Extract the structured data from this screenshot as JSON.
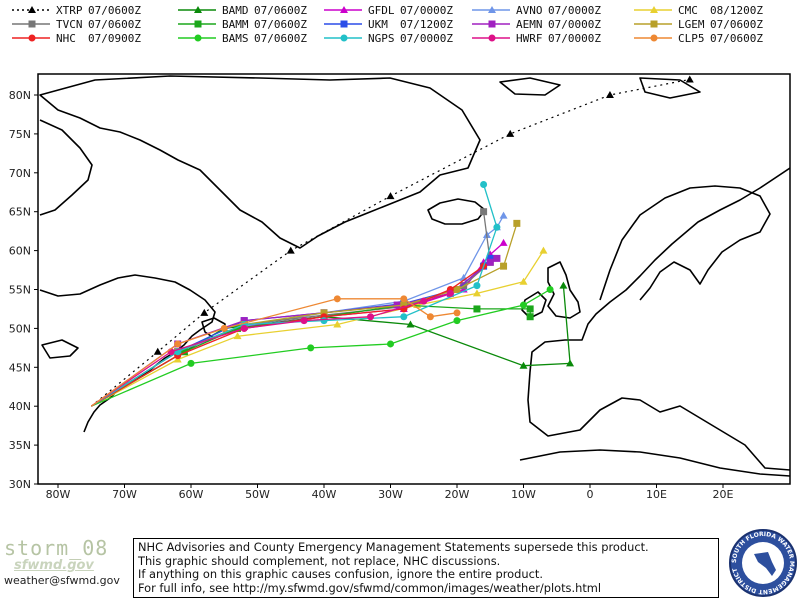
{
  "map": {
    "lat_ticks": [
      "80N",
      "75N",
      "70N",
      "65N",
      "60N",
      "55N",
      "50N",
      "45N",
      "40N",
      "35N",
      "30N"
    ],
    "lon_ticks": [
      "80W",
      "70W",
      "60W",
      "50W",
      "40W",
      "30W",
      "20W",
      "10W",
      "0",
      "10E",
      "20E"
    ]
  },
  "legend": [
    {
      "model": "XTRP",
      "time": "07/0600Z",
      "color": "#000000",
      "marker": "triangle",
      "dashed": true
    },
    {
      "model": "BAMD",
      "time": "07/0600Z",
      "color": "#0a8a0a",
      "marker": "triangle"
    },
    {
      "model": "GFDL",
      "time": "07/0000Z",
      "color": "#cc00cc",
      "marker": "triangle"
    },
    {
      "model": "AVNO",
      "time": "07/0000Z",
      "color": "#6f95e8",
      "marker": "triangle"
    },
    {
      "model": "CMC",
      "time": "08/1200Z",
      "color": "#e8d030",
      "marker": "triangle"
    },
    {
      "model": "TVCN",
      "time": "07/0600Z",
      "color": "#777777",
      "marker": "square"
    },
    {
      "model": "BAMM",
      "time": "07/0600Z",
      "color": "#1ba71b",
      "marker": "square"
    },
    {
      "model": "UKM",
      "time": "07/1200Z",
      "color": "#2b4de8",
      "marker": "square"
    },
    {
      "model": "AEMN",
      "time": "07/0000Z",
      "color": "#a020c0",
      "marker": "square"
    },
    {
      "model": "LGEM",
      "time": "07/0600Z",
      "color": "#b8a02a",
      "marker": "square"
    },
    {
      "model": "NHC",
      "time": "07/0900Z",
      "color": "#ee2222",
      "marker": "circle"
    },
    {
      "model": "BAMS",
      "time": "07/0600Z",
      "color": "#22cc22",
      "marker": "circle"
    },
    {
      "model": "NGPS",
      "time": "07/0000Z",
      "color": "#22c0c8",
      "marker": "circle"
    },
    {
      "model": "HWRF",
      "time": "07/0000Z",
      "color": "#dd1188",
      "marker": "circle"
    },
    {
      "model": "CLP5",
      "time": "07/0600Z",
      "color": "#ee8833",
      "marker": "circle"
    }
  ],
  "tracks": [
    {
      "model": "XTRP",
      "color": "#000000",
      "dashed": true,
      "marker": "triangle",
      "points": [
        [
          -75,
          40
        ],
        [
          -65,
          47
        ],
        [
          -58,
          52
        ],
        [
          -45,
          60
        ],
        [
          -30,
          67
        ],
        [
          -12,
          75
        ],
        [
          3,
          80
        ],
        [
          15,
          82
        ]
      ]
    },
    {
      "model": "BAMD",
      "color": "#0a8a0a",
      "marker": "triangle",
      "points": [
        [
          -75,
          40
        ],
        [
          -61,
          47
        ],
        [
          -55,
          50
        ],
        [
          -40,
          51.5
        ],
        [
          -27,
          50.5
        ],
        [
          -10,
          45.2
        ],
        [
          -3,
          45.5
        ],
        [
          -4,
          55.5
        ]
      ]
    },
    {
      "model": "GFDL",
      "color": "#cc00cc",
      "marker": "triangle",
      "points": [
        [
          -75,
          40
        ],
        [
          -62,
          47
        ],
        [
          -52,
          50.2
        ],
        [
          -40,
          51.5
        ],
        [
          -28,
          52.5
        ],
        [
          -19,
          55
        ],
        [
          -16,
          58.5
        ],
        [
          -15,
          59.5
        ],
        [
          -13,
          61
        ]
      ]
    },
    {
      "model": "AVNO",
      "color": "#6f95e8",
      "marker": "triangle",
      "points": [
        [
          -75,
          40
        ],
        [
          -62,
          47
        ],
        [
          -52,
          50.3
        ],
        [
          -40,
          52
        ],
        [
          -28,
          53.5
        ],
        [
          -19,
          56.5
        ],
        [
          -15.5,
          62
        ],
        [
          -14,
          63
        ],
        [
          -13,
          64.5
        ]
      ]
    },
    {
      "model": "CMC",
      "color": "#e8d030",
      "marker": "triangle",
      "points": [
        [
          -75,
          40
        ],
        [
          -62,
          46
        ],
        [
          -53,
          49
        ],
        [
          -38,
          50.5
        ],
        [
          -26,
          53
        ],
        [
          -17,
          54.5
        ],
        [
          -10,
          56
        ],
        [
          -7,
          60
        ]
      ]
    },
    {
      "model": "TVCN",
      "color": "#777777",
      "marker": "square",
      "points": [
        [
          -75,
          40
        ],
        [
          -62,
          47
        ],
        [
          -52,
          50.5
        ],
        [
          -40,
          51.7
        ],
        [
          -28,
          52.8
        ],
        [
          -19,
          55.5
        ],
        [
          -15,
          58.5
        ],
        [
          -16,
          65
        ]
      ]
    },
    {
      "model": "BAMM",
      "color": "#1ba71b",
      "marker": "square",
      "points": [
        [
          -75,
          40
        ],
        [
          -61,
          47
        ],
        [
          -53,
          50
        ],
        [
          -40,
          51.5
        ],
        [
          -28,
          53
        ],
        [
          -17,
          52.5
        ],
        [
          -9,
          52.5
        ],
        [
          -9,
          51.5
        ]
      ]
    },
    {
      "model": "UKM",
      "color": "#2b4de8",
      "marker": "square",
      "points": [
        [
          -75,
          40
        ],
        [
          -62,
          47
        ],
        [
          -52,
          51
        ],
        [
          -40,
          52
        ],
        [
          -28,
          53.2
        ],
        [
          -20,
          55
        ],
        [
          -16,
          58
        ],
        [
          -15,
          59
        ]
      ]
    },
    {
      "model": "AEMN",
      "color": "#a020c0",
      "marker": "square",
      "points": [
        [
          -75,
          40
        ],
        [
          -62,
          48
        ],
        [
          -52,
          51
        ],
        [
          -40,
          52
        ],
        [
          -29,
          53
        ],
        [
          -21,
          54.5
        ],
        [
          -15,
          58.5
        ],
        [
          -14,
          59
        ]
      ]
    },
    {
      "model": "LGEM",
      "color": "#b8a02a",
      "marker": "square",
      "points": [
        [
          -75,
          40
        ],
        [
          -62,
          47
        ],
        [
          -52,
          50.5
        ],
        [
          -40,
          52
        ],
        [
          -28,
          53
        ],
        [
          -20,
          55
        ],
        [
          -13,
          58
        ],
        [
          -11,
          63.5
        ]
      ]
    },
    {
      "model": "NHC",
      "color": "#ee2222",
      "marker": "circle",
      "points": [
        [
          -75,
          40
        ],
        [
          -62,
          46.5
        ],
        [
          -52,
          50
        ],
        [
          -40,
          51.5
        ],
        [
          -28,
          52.5
        ],
        [
          -21,
          55
        ],
        [
          -16,
          58
        ]
      ]
    },
    {
      "model": "BAMS",
      "color": "#22cc22",
      "marker": "circle",
      "points": [
        [
          -75,
          40
        ],
        [
          -60,
          45.5
        ],
        [
          -42,
          47.5
        ],
        [
          -30,
          48
        ],
        [
          -20,
          51
        ],
        [
          -10,
          53
        ],
        [
          -6,
          55
        ]
      ]
    },
    {
      "model": "NGPS",
      "color": "#22c0c8",
      "marker": "circle",
      "points": [
        [
          -75,
          40
        ],
        [
          -62,
          47
        ],
        [
          -52,
          50.5
        ],
        [
          -40,
          51
        ],
        [
          -28,
          51.5
        ],
        [
          -17,
          55.5
        ],
        [
          -14,
          63
        ],
        [
          -16,
          68.5
        ]
      ]
    },
    {
      "model": "HWRF",
      "color": "#dd1188",
      "marker": "circle",
      "points": [
        [
          -75,
          40
        ],
        [
          -63,
          47
        ],
        [
          -52,
          50
        ],
        [
          -43,
          51
        ],
        [
          -33,
          51.5
        ],
        [
          -25,
          53.5
        ],
        [
          -21,
          54.5
        ]
      ]
    },
    {
      "model": "CLP5",
      "color": "#ee8833",
      "marker": "circle",
      "points": [
        [
          -75,
          40
        ],
        [
          -62,
          48
        ],
        [
          -55,
          50
        ],
        [
          -38,
          53.8
        ],
        [
          -28,
          53.8
        ],
        [
          -24,
          51.5
        ],
        [
          -20,
          52
        ]
      ]
    }
  ],
  "footer": {
    "storm_label": "storm_08",
    "logo_text": "sfwmd.gov",
    "contact": "weather@sfwmd.gov",
    "disclaimer_lines": [
      "NHC Advisories and County Emergency Management Statements supersede this product.",
      "This graphic should complement, not replace, NHC discussions.",
      "If anything on this graphic causes confusion, ignore the entire product.",
      "For full info, see  http://my.sfwmd.gov/sfwmd/common/images/weather/plots.html"
    ],
    "seal_text": "SOUTH FLORIDA WATER MANAGEMENT DISTRICT"
  }
}
